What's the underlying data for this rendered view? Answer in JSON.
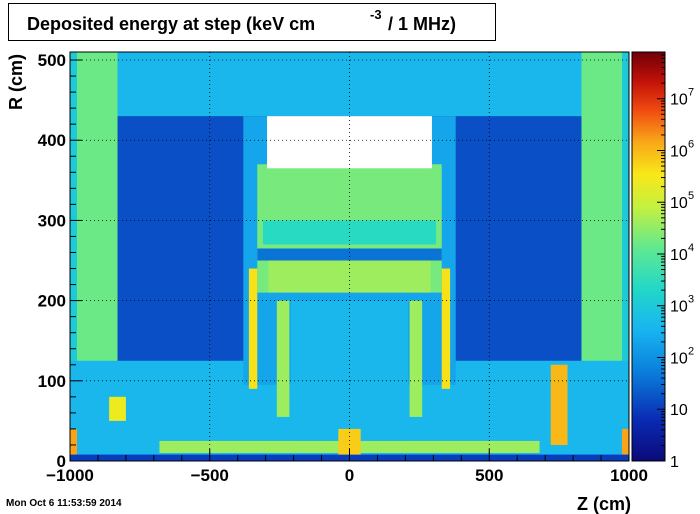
{
  "chart_data": {
    "type": "heatmap",
    "title": {
      "main": "Deposited energy at step (keV cm",
      "exponent": "-3",
      "tail": "/ 1 MHz)"
    },
    "xlabel": "Z (cm)",
    "ylabel": "R (cm)",
    "xlim": [
      -1000,
      1000
    ],
    "ylim": [
      0,
      510
    ],
    "x_ticks": [
      {
        "value": -1000,
        "label": "−1000"
      },
      {
        "value": -500,
        "label": "−500"
      },
      {
        "value": 0,
        "label": "0"
      },
      {
        "value": 500,
        "label": "500"
      },
      {
        "value": 1000,
        "label": "1000"
      }
    ],
    "y_ticks": [
      {
        "value": 0,
        "label": "0"
      },
      {
        "value": 100,
        "label": "100"
      },
      {
        "value": 200,
        "label": "200"
      },
      {
        "value": 300,
        "label": "300"
      },
      {
        "value": 400,
        "label": "400"
      },
      {
        "value": 500,
        "label": "500"
      }
    ],
    "colorbar": {
      "scale": "log",
      "range": [
        1,
        80000000
      ],
      "ticks": [
        {
          "value": 1,
          "base": "1",
          "exp": ""
        },
        {
          "value": 10,
          "base": "10",
          "exp": ""
        },
        {
          "value": 100,
          "base": "10",
          "exp": "2"
        },
        {
          "value": 1000,
          "base": "10",
          "exp": "3"
        },
        {
          "value": 10000,
          "base": "10",
          "exp": "4"
        },
        {
          "value": 100000,
          "base": "10",
          "exp": "5"
        },
        {
          "value": 1000000,
          "base": "10",
          "exp": "6"
        },
        {
          "value": 10000000,
          "base": "10",
          "exp": "7"
        }
      ]
    },
    "grid": true,
    "regions": [
      {
        "name": "outer-background",
        "z": [
          -1000,
          1000
        ],
        "r": [
          0,
          510
        ],
        "level": 2.6
      },
      {
        "name": "upper-dark-band",
        "z": [
          -830,
          830
        ],
        "r": [
          125,
          430
        ],
        "level": 1.2
      },
      {
        "name": "left-endcap-block",
        "z": [
          -975,
          -830
        ],
        "r": [
          125,
          510
        ],
        "level": 4.2
      },
      {
        "name": "right-endcap-block",
        "z": [
          830,
          975
        ],
        "r": [
          125,
          510
        ],
        "level": 4.2
      },
      {
        "name": "top-left-column",
        "z": [
          -1000,
          -975
        ],
        "r": [
          125,
          510
        ],
        "level": 3.0
      },
      {
        "name": "top-right-column",
        "z": [
          975,
          1000
        ],
        "r": [
          125,
          510
        ],
        "level": 3.0
      },
      {
        "name": "inner-cavity-glow",
        "z": [
          -380,
          380
        ],
        "r": [
          95,
          430
        ],
        "level": 2.3
      },
      {
        "name": "calorimeter-body",
        "z": [
          -330,
          330
        ],
        "r": [
          210,
          370
        ],
        "level": 4.3
      },
      {
        "name": "calorimeter-towers",
        "z": [
          -310,
          310
        ],
        "r": [
          270,
          300
        ],
        "level": 3.4
      },
      {
        "name": "barrel-ring",
        "z": [
          -330,
          330
        ],
        "r": [
          250,
          265
        ],
        "level": 1.6
      },
      {
        "name": "solenoid-band",
        "z": [
          -290,
          290
        ],
        "r": [
          210,
          250
        ],
        "level": 4.6
      },
      {
        "name": "tracker-volume",
        "z": [
          -210,
          210
        ],
        "r": [
          25,
          200
        ],
        "level": 2.6
      },
      {
        "name": "left-hot-rail",
        "z": [
          -360,
          -330
        ],
        "r": [
          90,
          240
        ],
        "level": 5.6
      },
      {
        "name": "right-hot-rail",
        "z": [
          330,
          360
        ],
        "r": [
          90,
          240
        ],
        "level": 5.6
      },
      {
        "name": "left-support-ladder",
        "z": [
          -260,
          -215
        ],
        "r": [
          55,
          200
        ],
        "level": 4.6
      },
      {
        "name": "right-support-ladder",
        "z": [
          215,
          260
        ],
        "r": [
          55,
          200
        ],
        "level": 4.6
      },
      {
        "name": "left-hot-box",
        "z": [
          -860,
          -800
        ],
        "r": [
          50,
          80
        ],
        "level": 5.4
      },
      {
        "name": "right-hot-box",
        "z": [
          720,
          780
        ],
        "r": [
          20,
          120
        ],
        "level": 6.0
      },
      {
        "name": "left-corner-hot",
        "z": [
          -1000,
          -975
        ],
        "r": [
          5,
          40
        ],
        "level": 6.2
      },
      {
        "name": "right-corner-hot",
        "z": [
          975,
          1000
        ],
        "r": [
          5,
          40
        ],
        "level": 6.2
      },
      {
        "name": "beampipe-floor",
        "z": [
          -1000,
          1000
        ],
        "r": [
          0,
          8
        ],
        "level": 1.0
      },
      {
        "name": "low-flange-strip",
        "z": [
          -680,
          680
        ],
        "r": [
          10,
          25
        ],
        "level": 4.6
      },
      {
        "name": "central-hot-core",
        "z": [
          -40,
          40
        ],
        "r": [
          8,
          40
        ],
        "level": 5.8
      },
      {
        "name": "top-empty-cap",
        "z": [
          -295,
          295
        ],
        "r": [
          365,
          430
        ],
        "level": -1
      }
    ]
  },
  "footer": {
    "timestamp": "Mon Oct  6 11:53:59 2014"
  }
}
